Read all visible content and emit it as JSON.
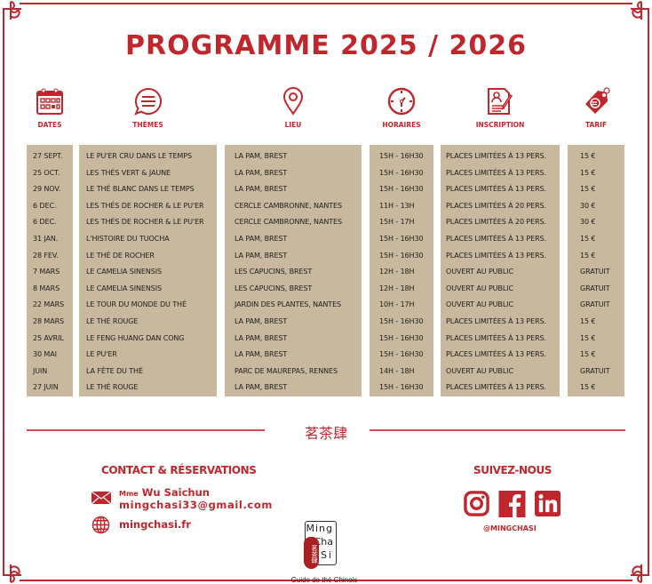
{
  "title": "PROGRAMME 2025 / 2026",
  "columns": [
    {
      "label": "DATES",
      "icon": "calendar-icon"
    },
    {
      "label": "THÈMES",
      "icon": "speech-bubble-icon"
    },
    {
      "label": "LIEU",
      "icon": "location-pin-icon"
    },
    {
      "label": "HORAIRES",
      "icon": "clock-icon"
    },
    {
      "label": "INSCRIPTION",
      "icon": "form-icon"
    },
    {
      "label": "TARIF",
      "icon": "euro-tag-icon"
    }
  ],
  "dates": [
    "27 SEPT.",
    "25 OCT.",
    "29 NOV.",
    "6 DEC.",
    "6 DEC.",
    "31 JAN.",
    "28 FEV.",
    "7 MARS",
    "8 MARS",
    "22 MARS",
    "28 MARS",
    "25 AVRIL",
    "30 MAI",
    "JUIN",
    "27 JUIN"
  ],
  "themes": [
    "LE PU'ER CRU DANS LE TEMPS",
    "LES THÉS VERT & JAUNE",
    "LE THÉ BLANC DANS LE TEMPS",
    "LES THÉS DE ROCHER & LE PU'ER",
    "LES THÉS DE ROCHER & LE PU'ER",
    "L'HISTOIRE DU TUOCHA",
    "LE THÉ DE ROCHER",
    "LE CAMELIA SINENSIS",
    "LE CAMELIA SINENSIS",
    "LE TOUR DU MONDE DU THÉ",
    "LE THÉ ROUGE",
    "LE FENG HUANG DAN CONG",
    "LE PU'ER",
    "LA FÊTE DU THÉ",
    "LE THÉ ROUGE"
  ],
  "lieux": [
    "LA PAM, BREST",
    "LA PAM, BREST",
    "LA PAM, BREST",
    "CERCLE CAMBRONNE, NANTES",
    "CERCLE CAMBRONNE, NANTES",
    "LA PAM, BREST",
    "LA PAM, BREST",
    "LES CAPUCINS, BREST",
    "LES CAPUCINS, BREST",
    "JARDIN DES PLANTES, NANTES",
    "LA PAM, BREST",
    "LA PAM, BREST",
    "LA PAM, BREST",
    "PARC DE MAUREPAS, RENNES",
    "LA PAM, BREST"
  ],
  "horaires": [
    "15H - 16H30",
    "15H - 16H30",
    "15H - 16H30",
    "11H - 13H",
    "15H - 17H",
    "15H - 16H30",
    "15H - 16H30",
    "12H - 18H",
    "12H - 18H",
    "10H - 17H",
    "15H - 16H30",
    "15H - 16H30",
    "15H - 16H30",
    "14H - 18H",
    "15H - 16H30"
  ],
  "inscription": [
    "PLACES LIMITÉES À 13 PERS.",
    "PLACES LIMITÉES À 13 PERS.",
    "PLACES LIMITÉES À 13 PERS.",
    "PLACES LIMITÉES À 20 PERS.",
    "PLACES LIMITÉES À 20 PERS.",
    "PLACES LIMITÉES À 13 PERS.",
    "PLACES LIMITÉES À 13 PERS.",
    "OUVERT AU PUBLIC",
    "OUVERT AU PUBLIC",
    "OUVERT AU PUBLIC",
    "PLACES LIMITÉES À 13 PERS.",
    "PLACES LIMITÉES À 13 PERS.",
    "PLACES LIMITÉES À 13 PERS.",
    "OUVERT AU PUBLIC",
    "PLACES LIMITÉES À 13 PERS."
  ],
  "tarifs": [
    "15 €",
    "15 €",
    "15 €",
    "30 €",
    "30 €",
    "15 €",
    "15 €",
    "GRATUIT",
    "GRATUIT",
    "GRATUIT",
    "15 €",
    "15 €",
    "15 €",
    "GRATUIT",
    "15 €"
  ],
  "divider_chinese": "茗茶肆",
  "contact": {
    "title": "CONTACT & RÉSERVATIONS",
    "name_prefix": "Mme",
    "name": "Wu Saichun",
    "email": "mingchasi33@gmail.com",
    "website": "mingchasi.fr"
  },
  "logo": {
    "line1": "Ming",
    "line2": "Cha",
    "line3": "Si",
    "seal": "茗茶肆",
    "tagline": "Guide de thé Chinois"
  },
  "social": {
    "title": "SUIVEZ-NOUS",
    "handle": "@MINGCHASI",
    "icons": [
      "instagram-icon",
      "facebook-icon",
      "linkedin-icon"
    ]
  },
  "colors": {
    "accent": "#c0272d",
    "table_bg": "#c8b89e"
  }
}
